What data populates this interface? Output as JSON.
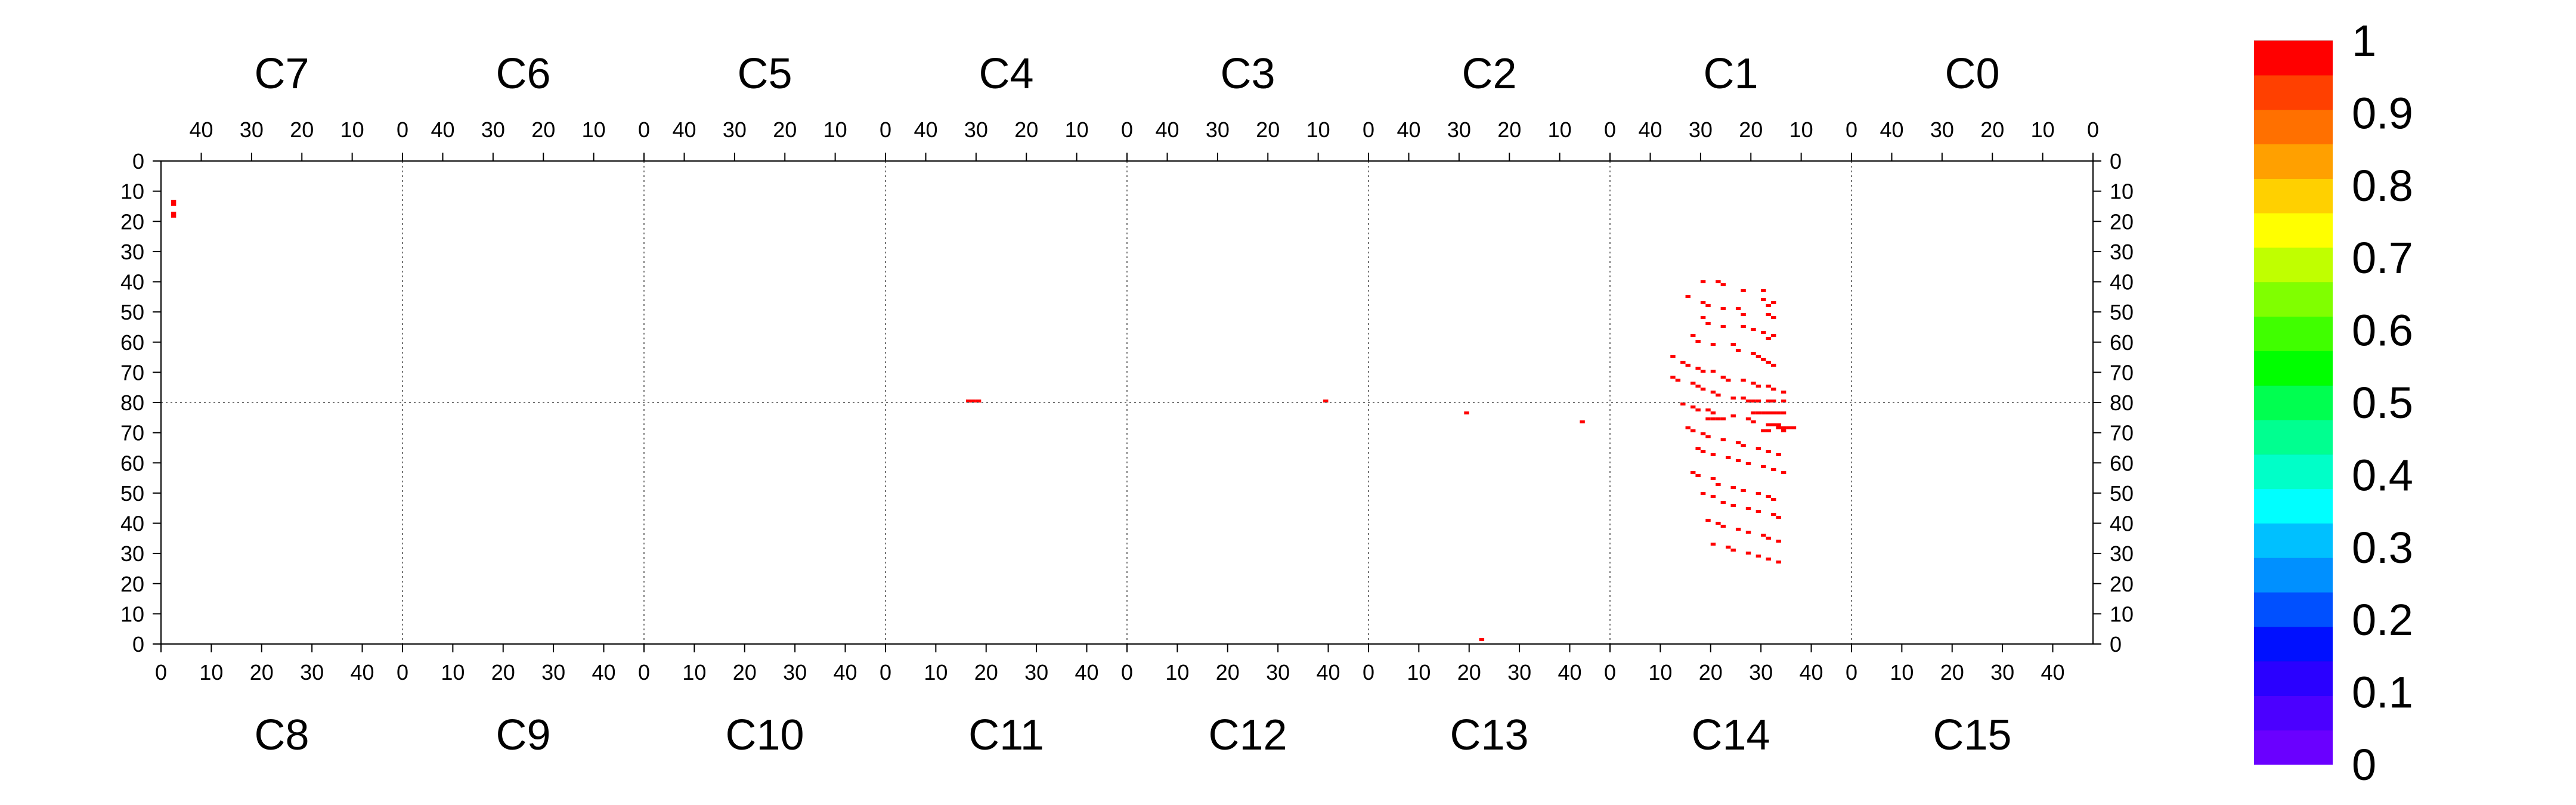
{
  "chart_data": {
    "type": "heatmap",
    "title": "",
    "xlabel": "",
    "ylabel": "",
    "top_chips": [
      "C7",
      "C6",
      "C5",
      "C4",
      "C3",
      "C2",
      "C1",
      "C0"
    ],
    "bottom_chips": [
      "C8",
      "C9",
      "C10",
      "C11",
      "C12",
      "C13",
      "C14",
      "C15"
    ],
    "top_tick_labels": [
      "40",
      "30",
      "20",
      "10",
      "0"
    ],
    "bottom_tick_labels": [
      "0",
      "10",
      "20",
      "30",
      "40"
    ],
    "left_row_ticks": [
      "0",
      "10",
      "20",
      "30",
      "40",
      "50",
      "60",
      "70",
      "80",
      "70",
      "60",
      "50",
      "40",
      "30",
      "20",
      "10",
      "0"
    ],
    "right_row_ticks": [
      "0",
      "10",
      "20",
      "30",
      "40",
      "50",
      "60",
      "70",
      "80",
      "70",
      "60",
      "50",
      "40",
      "30",
      "20",
      "10",
      "0"
    ],
    "colorbar": {
      "min": 0,
      "max": 1,
      "labels": [
        "0",
        "0.1",
        "0.2",
        "0.3",
        "0.4",
        "0.5",
        "0.6",
        "0.7",
        "0.8",
        "0.9",
        "1"
      ],
      "colors": [
        "#6a00ff",
        "#4b00ff",
        "#2a00ff",
        "#0010ff",
        "#0050ff",
        "#0090ff",
        "#00c0ff",
        "#00ffff",
        "#00ffc8",
        "#00ff90",
        "#00ff50",
        "#00ff00",
        "#40ff00",
        "#80ff00",
        "#c0ff00",
        "#ffff00",
        "#ffd000",
        "#ffa000",
        "#ff7000",
        "#ff4000",
        "#ff0000"
      ]
    },
    "hit_color": "#ff0000",
    "hit_value": 1,
    "hits": [
      [
        2,
        13
      ],
      [
        2,
        14
      ],
      [
        2,
        17
      ],
      [
        2,
        18
      ],
      [
        160,
        80
      ],
      [
        161,
        80
      ],
      [
        162,
        80
      ],
      [
        231,
        80
      ],
      [
        259,
        84
      ],
      [
        282,
        87
      ],
      [
        262,
        160
      ],
      [
        316,
        84
      ],
      [
        317,
        84
      ],
      [
        318,
        84
      ],
      [
        319,
        84
      ],
      [
        320,
        84
      ],
      [
        321,
        84
      ],
      [
        322,
        84
      ],
      [
        321,
        89
      ],
      [
        322,
        89
      ],
      [
        323,
        89
      ],
      [
        324,
        89
      ],
      [
        307,
        86
      ],
      [
        308,
        86
      ],
      [
        309,
        86
      ],
      [
        310,
        86
      ],
      [
        318,
        90
      ],
      [
        319,
        90
      ],
      [
        322,
        90
      ],
      [
        320,
        88
      ],
      [
        321,
        88
      ],
      [
        306,
        40
      ],
      [
        309,
        40
      ],
      [
        310,
        41
      ],
      [
        314,
        43
      ],
      [
        318,
        43
      ],
      [
        318,
        46
      ],
      [
        319,
        48
      ],
      [
        320,
        47
      ],
      [
        307,
        48
      ],
      [
        310,
        49
      ],
      [
        313,
        49
      ],
      [
        314,
        51
      ],
      [
        319,
        51
      ],
      [
        320,
        52
      ],
      [
        303,
        45
      ],
      [
        306,
        47
      ],
      [
        306,
        52
      ],
      [
        307,
        54
      ],
      [
        310,
        55
      ],
      [
        314,
        55
      ],
      [
        316,
        56
      ],
      [
        318,
        57
      ],
      [
        319,
        59
      ],
      [
        320,
        58
      ],
      [
        304,
        58
      ],
      [
        305,
        60
      ],
      [
        308,
        61
      ],
      [
        312,
        61
      ],
      [
        313,
        63
      ],
      [
        316,
        64
      ],
      [
        317,
        65
      ],
      [
        318,
        66
      ],
      [
        319,
        67
      ],
      [
        320,
        68
      ],
      [
        300,
        65
      ],
      [
        302,
        67
      ],
      [
        303,
        68
      ],
      [
        305,
        69
      ],
      [
        306,
        70
      ],
      [
        308,
        70
      ],
      [
        310,
        72
      ],
      [
        311,
        73
      ],
      [
        314,
        73
      ],
      [
        316,
        74
      ],
      [
        317,
        75
      ],
      [
        319,
        75
      ],
      [
        320,
        76
      ],
      [
        322,
        77
      ],
      [
        300,
        72
      ],
      [
        301,
        73
      ],
      [
        304,
        74
      ],
      [
        305,
        75
      ],
      [
        306,
        76
      ],
      [
        308,
        77
      ],
      [
        309,
        78
      ],
      [
        312,
        79
      ],
      [
        314,
        79
      ],
      [
        315,
        80
      ],
      [
        316,
        80
      ],
      [
        317,
        80
      ],
      [
        319,
        80
      ],
      [
        320,
        80
      ],
      [
        322,
        80
      ],
      [
        302,
        81
      ],
      [
        304,
        82
      ],
      [
        305,
        83
      ],
      [
        307,
        83
      ],
      [
        308,
        84
      ],
      [
        312,
        85
      ],
      [
        315,
        86
      ],
      [
        316,
        87
      ],
      [
        319,
        88
      ],
      [
        321,
        89
      ],
      [
        322,
        89
      ],
      [
        303,
        89
      ],
      [
        304,
        90
      ],
      [
        306,
        91
      ],
      [
        307,
        92
      ],
      [
        310,
        93
      ],
      [
        313,
        94
      ],
      [
        314,
        95
      ],
      [
        317,
        96
      ],
      [
        319,
        97
      ],
      [
        321,
        98
      ],
      [
        305,
        96
      ],
      [
        306,
        97
      ],
      [
        308,
        98
      ],
      [
        311,
        99
      ],
      [
        313,
        100
      ],
      [
        315,
        101
      ],
      [
        318,
        102
      ],
      [
        320,
        103
      ],
      [
        322,
        104
      ],
      [
        304,
        104
      ],
      [
        305,
        105
      ],
      [
        308,
        106
      ],
      [
        309,
        108
      ],
      [
        312,
        109
      ],
      [
        314,
        110
      ],
      [
        317,
        111
      ],
      [
        319,
        112
      ],
      [
        320,
        113
      ],
      [
        306,
        111
      ],
      [
        308,
        112
      ],
      [
        310,
        114
      ],
      [
        312,
        115
      ],
      [
        315,
        116
      ],
      [
        317,
        117
      ],
      [
        320,
        118
      ],
      [
        321,
        119
      ],
      [
        307,
        120
      ],
      [
        309,
        121
      ],
      [
        310,
        122
      ],
      [
        313,
        123
      ],
      [
        315,
        124
      ],
      [
        318,
        125
      ],
      [
        319,
        126
      ],
      [
        321,
        127
      ],
      [
        308,
        128
      ],
      [
        311,
        129
      ],
      [
        312,
        130
      ],
      [
        315,
        131
      ],
      [
        317,
        132
      ],
      [
        319,
        133
      ],
      [
        321,
        134
      ]
    ]
  }
}
